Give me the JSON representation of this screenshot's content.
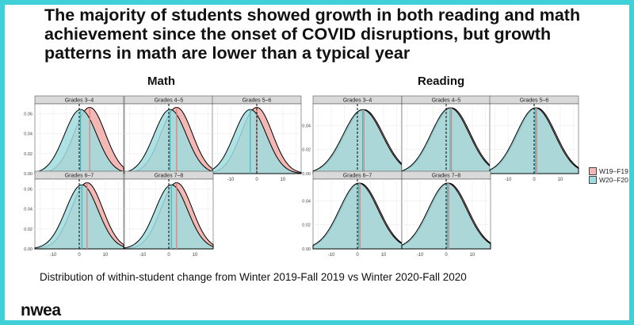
{
  "title_lines": [
    "The majority of students showed growth in both reading and math",
    "achievement since the onset of COVID disruptions, but growth",
    "patterns in math are lower than a typical year"
  ],
  "caption": "Distribution of within-student change from Winter 2019-Fall 2019 vs Winter 2020-Fall 2020",
  "logo": "nwea",
  "colors": {
    "background": "#3fd0d8",
    "series_W19_F19": "#f4b8b4",
    "series_W20_F20": "#9fdcde",
    "line_W19_F19": "#e57b74",
    "line_W20_F20": "#3bb8bf",
    "strip": "#d9d9d9",
    "panel_bg": "#ffffff",
    "grid": "#ececec"
  },
  "legend": [
    {
      "label": "W19–F19",
      "color": "#f4b8b4"
    },
    {
      "label": "W20–F20",
      "color": "#9fdcde"
    }
  ],
  "chart_data": [
    {
      "type": "area",
      "title": "Math",
      "x_ticks": [
        "-10",
        "0",
        "10"
      ],
      "xlim": [
        -17,
        17
      ],
      "y_ticks": [
        "0.00",
        "0.02",
        "0.04",
        "0.06"
      ],
      "ylim": [
        0,
        0.07
      ],
      "reference_line_x": 0,
      "panels": [
        {
          "strip": "Grades 3–4",
          "series": [
            {
              "name": "W19–F19",
              "mean": 4.0,
              "sd": 6.0
            },
            {
              "name": "W20–F20",
              "mean": 0.5,
              "sd": 6.2
            }
          ]
        },
        {
          "strip": "Grades 4–5",
          "series": [
            {
              "name": "W19–F19",
              "mean": 3.0,
              "sd": 6.0
            },
            {
              "name": "W20–F20",
              "mean": 0.5,
              "sd": 6.2
            }
          ]
        },
        {
          "strip": "Grades 5–6",
          "series": [
            {
              "name": "W19–F19",
              "mean": 0.0,
              "sd": 6.0
            },
            {
              "name": "W20–F20",
              "mean": -2.5,
              "sd": 6.2
            }
          ]
        },
        {
          "strip": "Grades 6–7",
          "series": [
            {
              "name": "W19–F19",
              "mean": 3.0,
              "sd": 6.0
            },
            {
              "name": "W20–F20",
              "mean": 1.0,
              "sd": 6.2
            }
          ]
        },
        {
          "strip": "Grades 7–8",
          "series": [
            {
              "name": "W19–F19",
              "mean": 3.0,
              "sd": 6.0
            },
            {
              "name": "W20–F20",
              "mean": 1.0,
              "sd": 6.2
            }
          ]
        }
      ]
    },
    {
      "type": "area",
      "title": "Reading",
      "x_ticks": [
        "-10",
        "0",
        "10"
      ],
      "xlim": [
        -17,
        17
      ],
      "y_ticks": [
        "0.00",
        "0.02",
        "0.04"
      ],
      "ylim": [
        0,
        0.058
      ],
      "reference_line_x": 0,
      "panels": [
        {
          "strip": "Grades 3–4",
          "series": [
            {
              "name": "W19–F19",
              "mean": 2.5,
              "sd": 7.5
            },
            {
              "name": "W20–F20",
              "mean": 2.0,
              "sd": 7.5
            }
          ]
        },
        {
          "strip": "Grades 4–5",
          "series": [
            {
              "name": "W19–F19",
              "mean": 2.0,
              "sd": 7.3
            },
            {
              "name": "W20–F20",
              "mean": 1.5,
              "sd": 7.3
            }
          ]
        },
        {
          "strip": "Grades 5–6",
          "series": [
            {
              "name": "W19–F19",
              "mean": 1.0,
              "sd": 7.3
            },
            {
              "name": "W20–F20",
              "mean": 0.5,
              "sd": 7.3
            }
          ]
        },
        {
          "strip": "Grades 6–7",
          "series": [
            {
              "name": "W19–F19",
              "mean": 1.0,
              "sd": 7.3
            },
            {
              "name": "W20–F20",
              "mean": 0.5,
              "sd": 7.3
            }
          ]
        },
        {
          "strip": "Grades 7–8",
          "series": [
            {
              "name": "W19–F19",
              "mean": 1.0,
              "sd": 7.3
            },
            {
              "name": "W20–F20",
              "mean": 0.5,
              "sd": 7.3
            }
          ]
        }
      ]
    }
  ]
}
